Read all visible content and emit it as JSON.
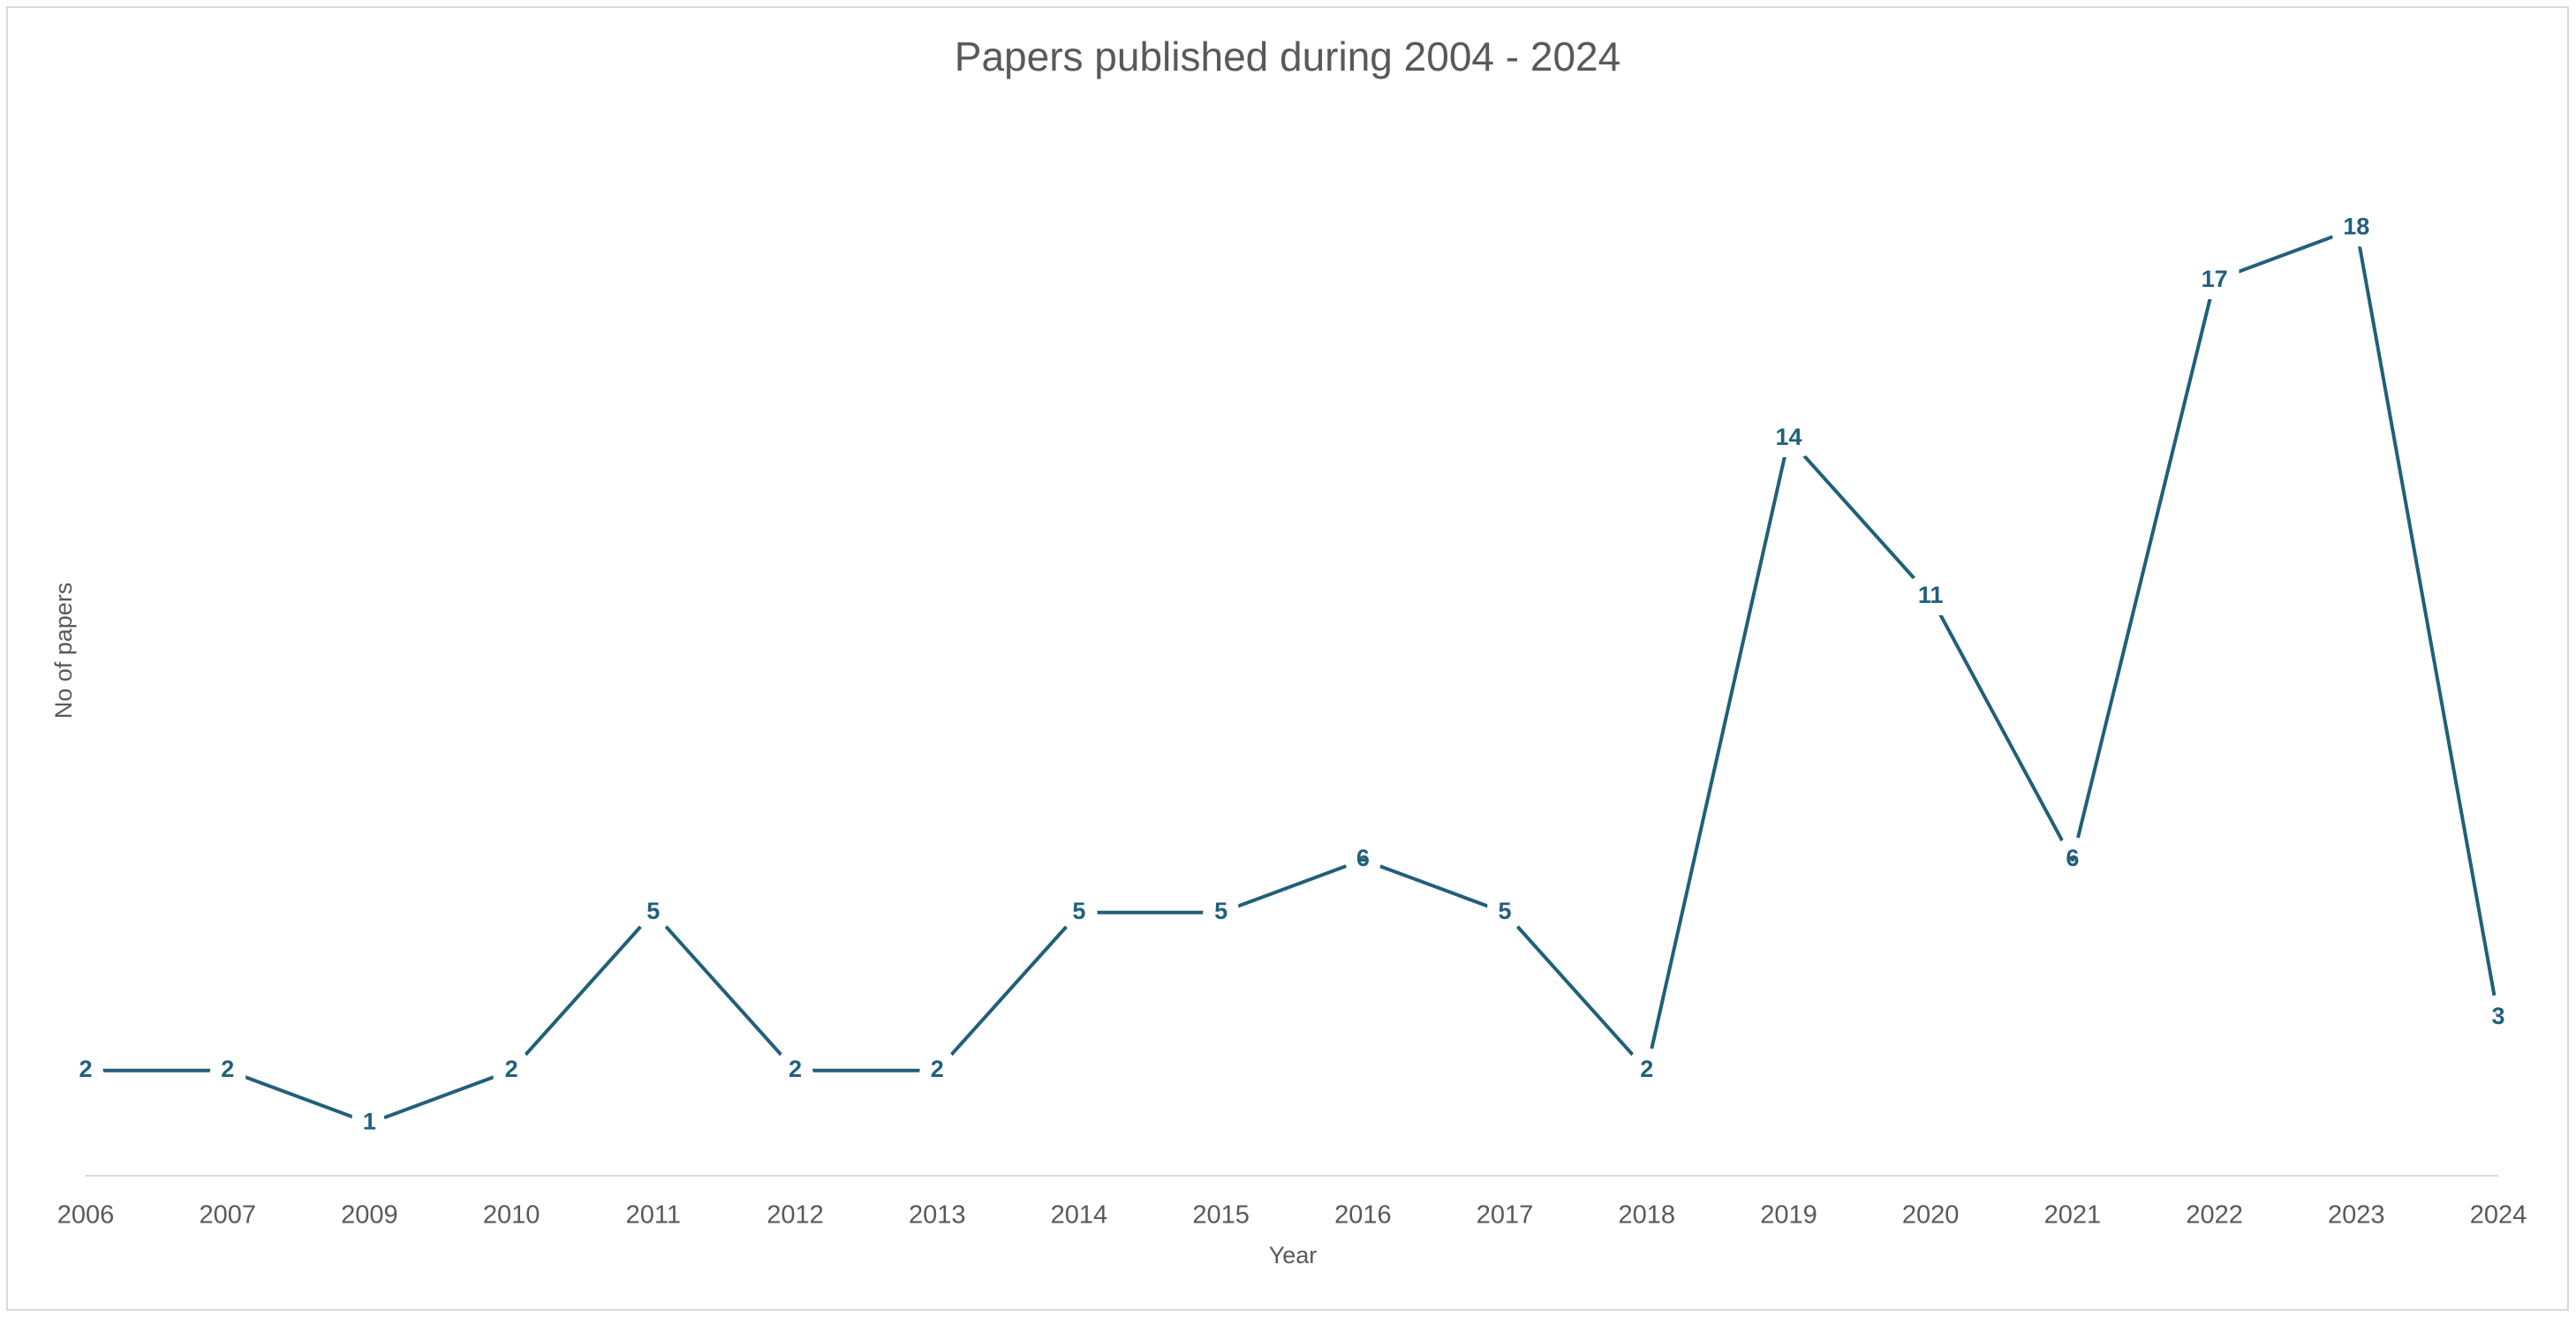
{
  "chart_data": {
    "type": "line",
    "title": "Papers published during 2004 - 2024",
    "x_label": "Year",
    "y_label": "No of papers",
    "categories": [
      "2006",
      "2007",
      "2009",
      "2010",
      "2011",
      "2012",
      "2013",
      "2014",
      "2015",
      "2016",
      "2017",
      "2018",
      "2019",
      "2020",
      "2021",
      "2022",
      "2023",
      "2024"
    ],
    "values": [
      2,
      2,
      1,
      2,
      5,
      2,
      2,
      5,
      5,
      6,
      5,
      2,
      14,
      11,
      6,
      17,
      18,
      3
    ],
    "color": "#215f7a",
    "ylim": [
      0,
      20
    ],
    "grid": false
  }
}
